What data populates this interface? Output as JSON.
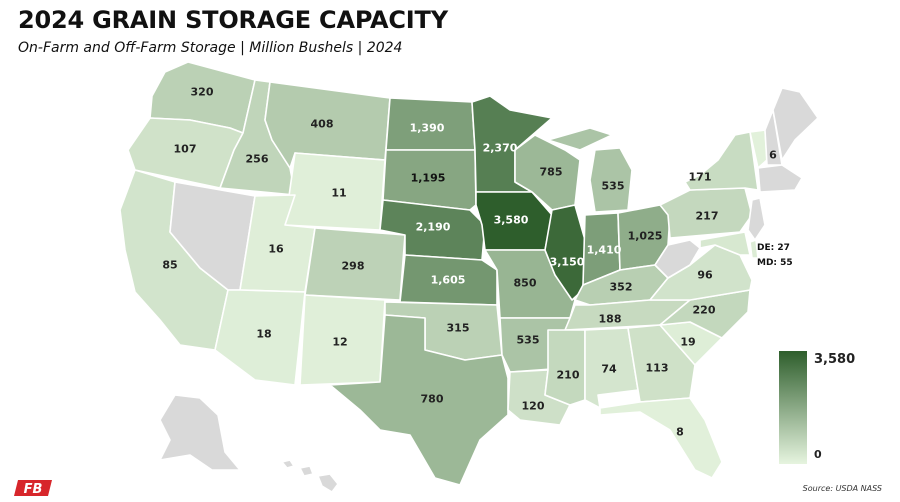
{
  "title": "2024 GRAIN STORAGE CAPACITY",
  "subtitle": "On-Farm and Off-Farm Storage | Million Bushels | 2024",
  "source": "Source: USDA NASS",
  "legend": {
    "max_label": "3,580",
    "min_label": "0",
    "color_high": "#2e5e2c",
    "color_low": "#e6f4df"
  },
  "no_data_color": "#d9d9d9",
  "callouts": {
    "de": "DE: 27",
    "md": "MD: 55"
  },
  "logo": {
    "text": "FB",
    "color": "#d7262b"
  },
  "states": [
    {
      "id": "WA",
      "label": "320",
      "value": 320
    },
    {
      "id": "OR",
      "label": "107",
      "value": 107
    },
    {
      "id": "ID",
      "label": "256",
      "value": 256
    },
    {
      "id": "MT",
      "label": "408",
      "value": 408
    },
    {
      "id": "WY",
      "label": "11",
      "value": 11
    },
    {
      "id": "CA",
      "label": "85",
      "value": 85
    },
    {
      "id": "NV",
      "label": "",
      "value": null
    },
    {
      "id": "UT",
      "label": "16",
      "value": 16
    },
    {
      "id": "AZ",
      "label": "18",
      "value": 18
    },
    {
      "id": "CO",
      "label": "298",
      "value": 298
    },
    {
      "id": "NM",
      "label": "12",
      "value": 12
    },
    {
      "id": "ND",
      "label": "1,390",
      "value": 1390
    },
    {
      "id": "SD",
      "label": "1,195",
      "value": 1195
    },
    {
      "id": "NE",
      "label": "2,190",
      "value": 2190
    },
    {
      "id": "KS",
      "label": "1,605",
      "value": 1605
    },
    {
      "id": "OK",
      "label": "315",
      "value": 315
    },
    {
      "id": "TX",
      "label": "780",
      "value": 780
    },
    {
      "id": "MN",
      "label": "2,370",
      "value": 2370
    },
    {
      "id": "IA",
      "label": "3,580",
      "value": 3580
    },
    {
      "id": "MO",
      "label": "850",
      "value": 850
    },
    {
      "id": "AR",
      "label": "535",
      "value": 535
    },
    {
      "id": "LA",
      "label": "120",
      "value": 120
    },
    {
      "id": "WI",
      "label": "785",
      "value": 785
    },
    {
      "id": "IL",
      "label": "3,150",
      "value": 3150
    },
    {
      "id": "MI",
      "label": "535",
      "value": 535
    },
    {
      "id": "IN",
      "label": "1,410",
      "value": 1410
    },
    {
      "id": "OH",
      "label": "1,025",
      "value": 1025
    },
    {
      "id": "KY",
      "label": "352",
      "value": 352
    },
    {
      "id": "TN",
      "label": "188",
      "value": 188
    },
    {
      "id": "MS",
      "label": "210",
      "value": 210
    },
    {
      "id": "AL",
      "label": "74",
      "value": 74
    },
    {
      "id": "GA",
      "label": "113",
      "value": 113
    },
    {
      "id": "FL",
      "label": "8",
      "value": 8
    },
    {
      "id": "SC",
      "label": "19",
      "value": 19
    },
    {
      "id": "NC",
      "label": "220",
      "value": 220
    },
    {
      "id": "VA",
      "label": "96",
      "value": 96
    },
    {
      "id": "WV",
      "label": "",
      "value": null
    },
    {
      "id": "PA",
      "label": "217",
      "value": 217
    },
    {
      "id": "NY",
      "label": "171",
      "value": 171
    },
    {
      "id": "VT",
      "label": "6",
      "value": 6
    },
    {
      "id": "NH",
      "label": "",
      "value": null
    },
    {
      "id": "ME",
      "label": "",
      "value": null
    },
    {
      "id": "NJ",
      "label": "",
      "value": null
    },
    {
      "id": "SNE",
      "label": "",
      "value": null
    },
    {
      "id": "DE",
      "label": "",
      "value": 27
    },
    {
      "id": "MD",
      "label": "",
      "value": 55
    },
    {
      "id": "AK",
      "label": "",
      "value": null
    },
    {
      "id": "HI",
      "label": "",
      "value": null
    }
  ]
}
